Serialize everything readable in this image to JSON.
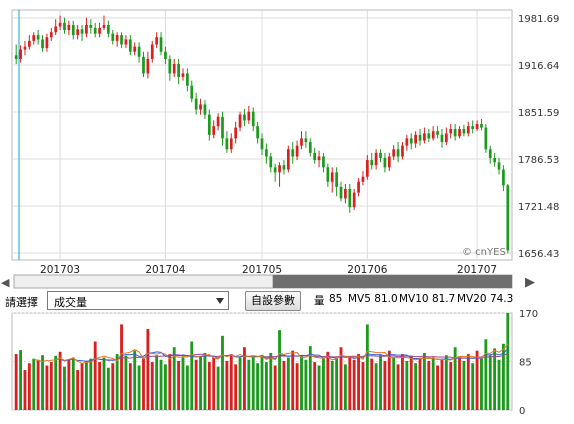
{
  "price_axis_labels": [
    "1981.69",
    "1916.64",
    "1851.59",
    "1786.53",
    "1721.48",
    "1656.43"
  ],
  "volume_axis_labels": [
    "170",
    "85",
    "0"
  ],
  "month_labels": [
    "201703",
    "201704",
    "201705",
    "201706",
    "201707"
  ],
  "copyright": "© cnYES",
  "controls": {
    "indicator_label": "請選擇",
    "indicator_value": "成交量",
    "settings_button": "自設參數",
    "vol_label": "量",
    "vol_value": "85",
    "mv5": "MV5 81.0",
    "mv10": "MV10 81.7",
    "mv20": "MV20 74.3"
  },
  "scrollbar": {
    "left_arrow": "◀",
    "right_arrow": "▶",
    "position_fraction": 0.52
  },
  "colors": {
    "up": "#d92020",
    "down": "#1d9a1d",
    "grid": "#dcdcdc",
    "cursor": "#1aa3c8",
    "mv5": "#e07820",
    "mv10": "#3060d0",
    "mv20": "#a04890"
  },
  "chart_data": {
    "type": "candlestick",
    "price_ylim": [
      1656.43,
      1981.69
    ],
    "volume_ylim": [
      0,
      170
    ],
    "candles": [
      [
        1930,
        1925,
        1945,
        1918
      ],
      [
        1925,
        1938,
        1944,
        1920
      ],
      [
        1938,
        1942,
        1950,
        1930
      ],
      [
        1942,
        1950,
        1958,
        1938
      ],
      [
        1950,
        1958,
        1962,
        1945
      ],
      [
        1958,
        1952,
        1965,
        1945
      ],
      [
        1952,
        1940,
        1958,
        1935
      ],
      [
        1940,
        1955,
        1960,
        1935
      ],
      [
        1955,
        1962,
        1968,
        1950
      ],
      [
        1962,
        1970,
        1980,
        1958
      ],
      [
        1970,
        1975,
        1985,
        1965
      ],
      [
        1975,
        1965,
        1982,
        1960
      ],
      [
        1965,
        1972,
        1978,
        1958
      ],
      [
        1972,
        1958,
        1978,
        1952
      ],
      [
        1958,
        1966,
        1972,
        1952
      ],
      [
        1966,
        1960,
        1972,
        1950
      ],
      [
        1960,
        1972,
        1982,
        1955
      ],
      [
        1972,
        1968,
        1980,
        1960
      ],
      [
        1968,
        1960,
        1975,
        1955
      ],
      [
        1960,
        1968,
        1975,
        1955
      ],
      [
        1968,
        1972,
        1985,
        1965
      ],
      [
        1972,
        1960,
        1978,
        1955
      ],
      [
        1960,
        1950,
        1965,
        1945
      ],
      [
        1950,
        1958,
        1962,
        1942
      ],
      [
        1958,
        1945,
        1962,
        1940
      ],
      [
        1945,
        1952,
        1958,
        1940
      ],
      [
        1952,
        1935,
        1958,
        1930
      ],
      [
        1935,
        1942,
        1948,
        1930
      ],
      [
        1942,
        1928,
        1948,
        1920
      ],
      [
        1928,
        1905,
        1935,
        1900
      ],
      [
        1905,
        1925,
        1935,
        1898
      ],
      [
        1925,
        1945,
        1950,
        1920
      ],
      [
        1945,
        1955,
        1962,
        1940
      ],
      [
        1955,
        1935,
        1962,
        1930
      ],
      [
        1935,
        1925,
        1942,
        1918
      ],
      [
        1925,
        1905,
        1930,
        1895
      ],
      [
        1905,
        1918,
        1925,
        1900
      ],
      [
        1918,
        1900,
        1925,
        1890
      ],
      [
        1900,
        1905,
        1912,
        1895
      ],
      [
        1905,
        1888,
        1912,
        1880
      ],
      [
        1888,
        1870,
        1895,
        1865
      ],
      [
        1870,
        1855,
        1878,
        1848
      ],
      [
        1855,
        1862,
        1870,
        1848
      ],
      [
        1862,
        1848,
        1868,
        1842
      ],
      [
        1848,
        1820,
        1855,
        1812
      ],
      [
        1820,
        1832,
        1840,
        1815
      ],
      [
        1832,
        1845,
        1850,
        1826
      ],
      [
        1845,
        1815,
        1852,
        1805
      ],
      [
        1815,
        1800,
        1825,
        1795
      ],
      [
        1800,
        1815,
        1822,
        1795
      ],
      [
        1815,
        1830,
        1838,
        1808
      ],
      [
        1830,
        1848,
        1852,
        1825
      ],
      [
        1848,
        1840,
        1856,
        1832
      ],
      [
        1840,
        1852,
        1860,
        1835
      ],
      [
        1852,
        1832,
        1858,
        1825
      ],
      [
        1832,
        1815,
        1838,
        1808
      ],
      [
        1815,
        1800,
        1822,
        1792
      ],
      [
        1800,
        1790,
        1808,
        1780
      ],
      [
        1790,
        1775,
        1795,
        1768
      ],
      [
        1775,
        1768,
        1780,
        1755
      ],
      [
        1768,
        1778,
        1782,
        1748
      ],
      [
        1778,
        1772,
        1785,
        1765
      ],
      [
        1772,
        1800,
        1805,
        1768
      ],
      [
        1800,
        1790,
        1810,
        1780
      ],
      [
        1790,
        1805,
        1812,
        1785
      ],
      [
        1805,
        1815,
        1825,
        1800
      ],
      [
        1815,
        1810,
        1825,
        1802
      ],
      [
        1810,
        1795,
        1815,
        1790
      ],
      [
        1795,
        1785,
        1802,
        1780
      ],
      [
        1785,
        1790,
        1798,
        1775
      ],
      [
        1790,
        1775,
        1795,
        1768
      ],
      [
        1775,
        1755,
        1780,
        1748
      ],
      [
        1755,
        1768,
        1775,
        1740
      ],
      [
        1768,
        1748,
        1775,
        1735
      ],
      [
        1748,
        1732,
        1755,
        1728
      ],
      [
        1732,
        1745,
        1752,
        1725
      ],
      [
        1745,
        1720,
        1752,
        1712
      ],
      [
        1720,
        1740,
        1745,
        1716
      ],
      [
        1740,
        1755,
        1760,
        1735
      ],
      [
        1755,
        1762,
        1770,
        1750
      ],
      [
        1762,
        1785,
        1792,
        1758
      ],
      [
        1785,
        1778,
        1795,
        1772
      ],
      [
        1778,
        1795,
        1800,
        1772
      ],
      [
        1795,
        1788,
        1800,
        1782
      ],
      [
        1788,
        1775,
        1795,
        1768
      ],
      [
        1775,
        1790,
        1795,
        1770
      ],
      [
        1790,
        1800,
        1806,
        1785
      ],
      [
        1800,
        1790,
        1810,
        1782
      ],
      [
        1790,
        1805,
        1810,
        1786
      ],
      [
        1805,
        1815,
        1820,
        1798
      ],
      [
        1815,
        1808,
        1822,
        1800
      ],
      [
        1808,
        1820,
        1825,
        1802
      ],
      [
        1820,
        1812,
        1828,
        1805
      ],
      [
        1812,
        1822,
        1830,
        1808
      ],
      [
        1822,
        1815,
        1828,
        1810
      ],
      [
        1815,
        1825,
        1832,
        1812
      ],
      [
        1825,
        1820,
        1832,
        1815
      ],
      [
        1820,
        1810,
        1828,
        1802
      ],
      [
        1810,
        1822,
        1830,
        1806
      ],
      [
        1822,
        1828,
        1835,
        1815
      ],
      [
        1828,
        1818,
        1835,
        1812
      ],
      [
        1818,
        1828,
        1832,
        1815
      ],
      [
        1828,
        1822,
        1834,
        1818
      ],
      [
        1822,
        1832,
        1838,
        1818
      ],
      [
        1832,
        1828,
        1840,
        1822
      ],
      [
        1828,
        1835,
        1840,
        1825
      ],
      [
        1835,
        1830,
        1842,
        1826
      ],
      [
        1830,
        1800,
        1835,
        1795
      ],
      [
        1800,
        1788,
        1805,
        1780
      ],
      [
        1788,
        1782,
        1795,
        1776
      ],
      [
        1782,
        1772,
        1788,
        1765
      ],
      [
        1772,
        1750,
        1778,
        1742
      ],
      [
        1750,
        1660,
        1752,
        1656
      ]
    ],
    "volumes": [
      98,
      105,
      70,
      82,
      90,
      88,
      96,
      78,
      84,
      95,
      102,
      76,
      88,
      92,
      70,
      82,
      86,
      90,
      120,
      84,
      92,
      74,
      82,
      98,
      150,
      95,
      82,
      104,
      78,
      90,
      142,
      84,
      96,
      88,
      80,
      98,
      110,
      86,
      92,
      78,
      120,
      88,
      94,
      100,
      84,
      92,
      76,
      130,
      86,
      98,
      80,
      92,
      110,
      88,
      94,
      82,
      96,
      84,
      100,
      78,
      140,
      86,
      92,
      104,
      82,
      96,
      88,
      112,
      84,
      78,
      90,
      102,
      86,
      92,
      110,
      80,
      94,
      88,
      98,
      84,
      150,
      90,
      82,
      96,
      86,
      104,
      92,
      80,
      98,
      86,
      94,
      82,
      90,
      100,
      86,
      92,
      78,
      88,
      96,
      84,
      110,
      92,
      86,
      98,
      82,
      104,
      90,
      124,
      96,
      108,
      88,
      116,
      170
    ],
    "volume_up": [
      true,
      false,
      true,
      true,
      false,
      true,
      false,
      true,
      true,
      false,
      true,
      false,
      true,
      false,
      true,
      true,
      false,
      false,
      true,
      true,
      false,
      false,
      true,
      false,
      true,
      false,
      true,
      false,
      false,
      true,
      true,
      true,
      false,
      false,
      false,
      true,
      false,
      true,
      false,
      false,
      false,
      true,
      false,
      false,
      true,
      true,
      false,
      false,
      true,
      true,
      true,
      false,
      true,
      false,
      false,
      false,
      false,
      false,
      false,
      true,
      false,
      true,
      false,
      true,
      true,
      false,
      false,
      false,
      true,
      false,
      false,
      true,
      false,
      false,
      true,
      false,
      true,
      true,
      true,
      true,
      false,
      true,
      false,
      false,
      true,
      true,
      false,
      true,
      true,
      false,
      true,
      false,
      true,
      false,
      true,
      false,
      true,
      true,
      false,
      true,
      false,
      true,
      false,
      true,
      false,
      true,
      false,
      false,
      false,
      false,
      false,
      false,
      false
    ]
  }
}
